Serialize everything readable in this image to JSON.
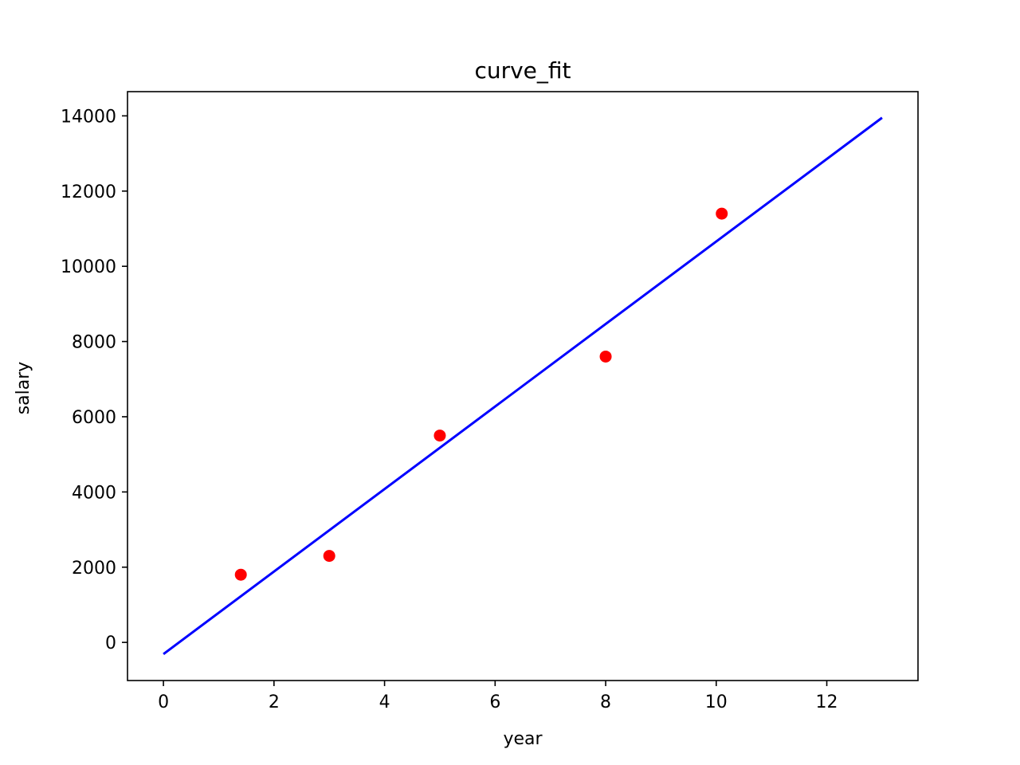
{
  "chart_data": {
    "type": "scatter",
    "title": "curve_fit",
    "xlabel": "year",
    "ylabel": "salary",
    "xlim": [
      -0.65,
      13.65
    ],
    "ylim": [
      -1014,
      14644
    ],
    "xticks": [
      0,
      2,
      4,
      6,
      8,
      10,
      12
    ],
    "yticks": [
      0,
      2000,
      4000,
      6000,
      8000,
      10000,
      12000,
      14000
    ],
    "grid": false,
    "legend": "none",
    "series": [
      {
        "kind": "scatter",
        "color": "#ff0000",
        "x": [
          1.4,
          3.0,
          5.0,
          8.0,
          10.1
        ],
        "y": [
          1800,
          2300,
          5500,
          7600,
          11400
        ]
      },
      {
        "kind": "line",
        "color": "#0000ff",
        "x": [
          0,
          13
        ],
        "y": [
          -310,
          13950
        ]
      }
    ]
  }
}
